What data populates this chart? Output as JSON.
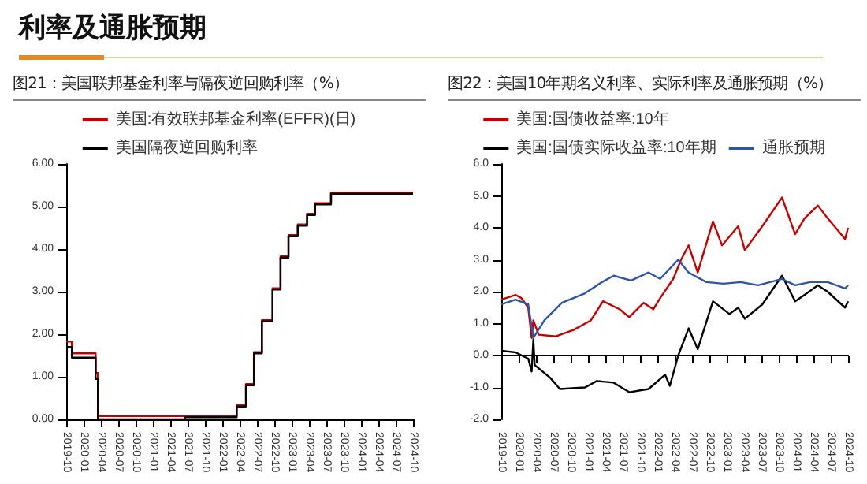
{
  "chart_data": [
    {
      "type": "step",
      "title": "图21：美国联邦基金利率与隔夜逆回购利率（%）",
      "annotations": [
        "利率及通胀预期"
      ],
      "series": [
        {
          "name": "美国:有效联邦基金利率(EFFR)(日)",
          "color": "#c00000",
          "x": [
            "2019-10-01",
            "2019-10-31",
            "2020-03-04",
            "2020-03-16",
            "2021-06-17",
            "2022-03-17",
            "2022-05-05",
            "2022-06-16",
            "2022-07-28",
            "2022-09-22",
            "2022-11-03",
            "2022-12-15",
            "2023-02-02",
            "2023-03-23",
            "2023-05-04",
            "2023-07-27",
            "2024-10-01"
          ],
          "values": [
            1.83,
            1.55,
            1.09,
            0.08,
            0.08,
            0.33,
            0.83,
            1.58,
            2.33,
            3.08,
            3.83,
            4.33,
            4.58,
            4.83,
            5.08,
            5.33,
            5.33
          ]
        },
        {
          "name": "美国隔夜逆回购利率",
          "color": "#000000",
          "x": [
            "2019-10-01",
            "2019-10-31",
            "2020-03-04",
            "2020-03-16",
            "2021-06-17",
            "2022-03-17",
            "2022-05-05",
            "2022-06-16",
            "2022-07-28",
            "2022-09-22",
            "2022-11-03",
            "2022-12-15",
            "2023-02-02",
            "2023-03-23",
            "2023-05-04",
            "2023-07-27",
            "2024-10-01"
          ],
          "values": [
            1.7,
            1.45,
            0.95,
            0,
            0.05,
            0.3,
            0.8,
            1.55,
            2.3,
            3.05,
            3.8,
            4.3,
            4.55,
            4.8,
            5.05,
            5.3,
            5.3
          ]
        }
      ],
      "xlim": [
        "2019-10",
        "2024-10"
      ],
      "xticks": [
        "2019-10",
        "2020-01",
        "2020-04",
        "2020-07",
        "2020-10",
        "2021-01",
        "2021-04",
        "2021-07",
        "2021-10",
        "2022-01",
        "2022-04",
        "2022-07",
        "2022-10",
        "2023-01",
        "2023-04",
        "2023-07",
        "2023-10",
        "2024-01",
        "2024-04",
        "2024-07",
        "2024-10"
      ],
      "ylim": [
        0,
        6
      ],
      "yticks": [
        {
          "value": 0,
          "label": "0.00"
        },
        {
          "value": 1,
          "label": "1.00"
        },
        {
          "value": 2,
          "label": "2.00"
        },
        {
          "value": 3,
          "label": "3.00"
        },
        {
          "value": 4,
          "label": "4.00"
        },
        {
          "value": 5,
          "label": "5.00"
        },
        {
          "value": 6,
          "label": "6.00"
        }
      ],
      "legend": "top",
      "marker": "none",
      "line_style": "solid"
    },
    {
      "type": "line",
      "title": "图22：美国10年期名义利率、实际利率及通胀预期（%）",
      "series": [
        {
          "name": "美国:国债收益率:10年",
          "color": "#c00000",
          "x": [
            "2019-10-01",
            "2019-12-15",
            "2020-01-15",
            "2020-02-20",
            "2020-03-09",
            "2020-03-18",
            "2020-04-15",
            "2020-07-15",
            "2020-10-15",
            "2021-01-15",
            "2021-03-20",
            "2021-06-15",
            "2021-08-05",
            "2021-10-20",
            "2021-12-10",
            "2022-01-15",
            "2022-03-25",
            "2022-05-05",
            "2022-06-14",
            "2022-08-01",
            "2022-10-20",
            "2022-12-07",
            "2023-03-02",
            "2023-04-06",
            "2023-07-07",
            "2023-10-19",
            "2023-12-27",
            "2024-02-15",
            "2024-04-25",
            "2024-06-15",
            "2024-09-15",
            "2024-10-01"
          ],
          "values": [
            1.75,
            1.9,
            1.8,
            1.5,
            0.55,
            1.1,
            0.65,
            0.6,
            0.8,
            1.1,
            1.7,
            1.45,
            1.2,
            1.65,
            1.45,
            1.8,
            2.4,
            3.0,
            3.45,
            2.6,
            4.2,
            3.45,
            4.05,
            3.3,
            4.05,
            4.95,
            3.8,
            4.3,
            4.7,
            4.3,
            3.65,
            4.0
          ]
        },
        {
          "name": "美国:国债实际收益率:10年期",
          "color": "#000000",
          "x": [
            "2019-10-01",
            "2019-12-15",
            "2020-02-20",
            "2020-03-09",
            "2020-03-18",
            "2020-03-25",
            "2020-06-15",
            "2020-08-05",
            "2020-12-15",
            "2021-02-15",
            "2021-05-15",
            "2021-08-05",
            "2021-11-15",
            "2022-02-10",
            "2022-03-07",
            "2022-04-20",
            "2022-06-14",
            "2022-08-01",
            "2022-10-20",
            "2023-01-15",
            "2023-03-02",
            "2023-04-06",
            "2023-07-07",
            "2023-10-19",
            "2023-12-27",
            "2024-02-15",
            "2024-04-25",
            "2024-06-15",
            "2024-09-15",
            "2024-10-01"
          ],
          "values": [
            0.15,
            0.1,
            -0.1,
            -0.5,
            0.5,
            -0.3,
            -0.7,
            -1.05,
            -1.0,
            -0.8,
            -0.85,
            -1.15,
            -1.05,
            -0.6,
            -0.95,
            0.0,
            0.85,
            0.2,
            1.7,
            1.3,
            1.5,
            1.15,
            1.6,
            2.5,
            1.7,
            1.9,
            2.2,
            2.0,
            1.5,
            1.7
          ]
        },
        {
          "name": "通胀预期",
          "color": "#2f55a4",
          "x": [
            "2019-10-01",
            "2019-12-15",
            "2020-02-20",
            "2020-03-18",
            "2020-05-15",
            "2020-08-15",
            "2020-12-15",
            "2021-03-15",
            "2021-05-15",
            "2021-08-15",
            "2021-11-15",
            "2022-01-15",
            "2022-04-20",
            "2022-06-14",
            "2022-09-15",
            "2022-12-15",
            "2023-03-15",
            "2023-06-15",
            "2023-10-19",
            "2023-12-27",
            "2024-03-15",
            "2024-06-15",
            "2024-09-15",
            "2024-10-01"
          ],
          "values": [
            1.6,
            1.75,
            1.6,
            0.55,
            1.1,
            1.65,
            1.95,
            2.3,
            2.5,
            2.35,
            2.6,
            2.4,
            3.0,
            2.6,
            2.3,
            2.25,
            2.3,
            2.2,
            2.4,
            2.2,
            2.3,
            2.3,
            2.1,
            2.2
          ]
        }
      ],
      "xlim": [
        "2019-10",
        "2024-10"
      ],
      "xticks": [
        "2019-10",
        "2020-01",
        "2020-04",
        "2020-07",
        "2020-10",
        "2021-01",
        "2021-04",
        "2021-07",
        "2021-10",
        "2022-01",
        "2022-04",
        "2022-07",
        "2022-10",
        "2023-01",
        "2023-04",
        "2023-07",
        "2023-10",
        "2024-01",
        "2024-04",
        "2024-07",
        "2024-10"
      ],
      "ylim": [
        -2,
        6
      ],
      "yticks": [
        {
          "value": -2,
          "label": "-2.0"
        },
        {
          "value": -1,
          "label": "-1.0"
        },
        {
          "value": 0,
          "label": "0.0"
        },
        {
          "value": 1,
          "label": "1.0"
        },
        {
          "value": 2,
          "label": "2.0"
        },
        {
          "value": 3,
          "label": "3.0"
        },
        {
          "value": 4,
          "label": "4.0"
        },
        {
          "value": 5,
          "label": "5.0"
        },
        {
          "value": 6,
          "label": "6.0"
        }
      ],
      "legend": "top",
      "marker": "none",
      "line_style": "solid"
    }
  ]
}
